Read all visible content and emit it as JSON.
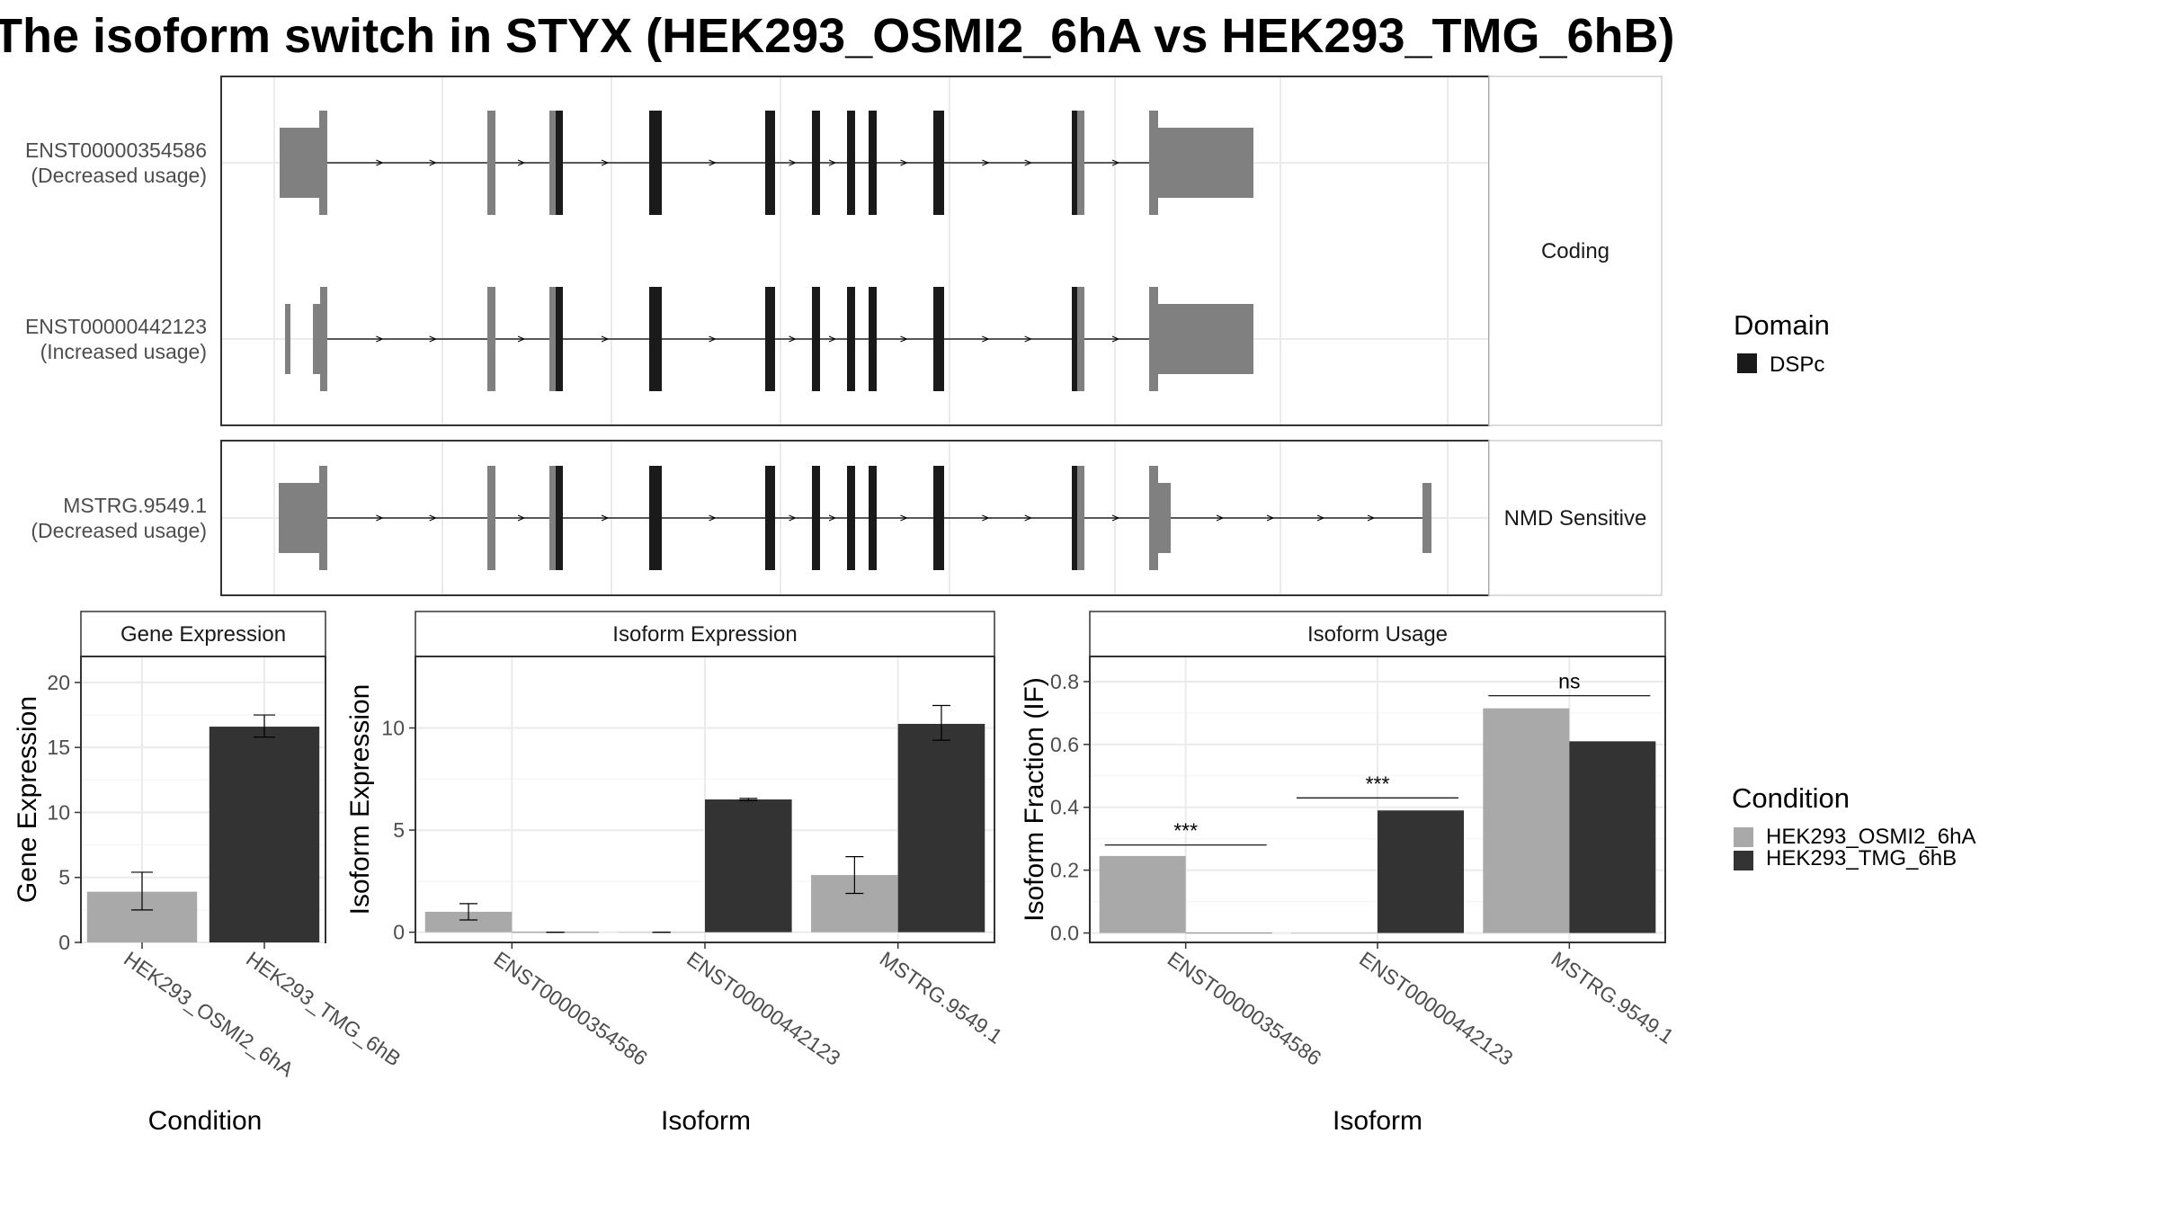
{
  "title": "The isoform switch in STYX (HEK293_OSMI2_6hA vs HEK293_TMG_6hB)",
  "legend_domain": {
    "title": "Domain",
    "items": [
      {
        "label": "DSPc",
        "color": "#1a1a1a"
      }
    ]
  },
  "legend_condition": {
    "title": "Condition",
    "items": [
      {
        "label": "HEK293_OSMI2_6hA",
        "color": "#a9a9a9"
      },
      {
        "label": "HEK293_TMG_6hB",
        "color": "#333333"
      }
    ]
  },
  "structure": {
    "panels": [
      {
        "strip": "Coding",
        "tracks": [
          {
            "label1": "ENST00000354586",
            "label2": "(Decreased usage)",
            "exons": "e1"
          },
          {
            "label1": "ENST00000442123",
            "label2": "(Increased usage)",
            "exons": "e2"
          }
        ]
      },
      {
        "strip": "NMD Sensitive",
        "tracks": [
          {
            "label1": "MSTRG.9549.1",
            "label2": "(Decreased usage)",
            "exons": "e3"
          }
        ]
      }
    ],
    "exon_color": "#808080",
    "domain_color": "#1a1a1a"
  },
  "chart_data": [
    {
      "type": "bar",
      "strip": "Gene Expression",
      "xlabel": "Condition",
      "ylabel": "Gene Expression",
      "ylim": [
        0,
        22
      ],
      "yticks": [
        0,
        5,
        10,
        15,
        20
      ],
      "categories": [
        "HEK293_OSMI2_6hA",
        "HEK293_TMG_6hB"
      ],
      "values": [
        3.9,
        16.6
      ],
      "errors": [
        [
          2.5,
          5.4
        ],
        [
          15.8,
          17.5
        ]
      ],
      "colors": [
        "#a9a9a9",
        "#333333"
      ]
    },
    {
      "type": "bar",
      "strip": "Isoform Expression",
      "xlabel": "Isoform",
      "ylabel": "Isoform Expression",
      "ylim": [
        -0.5,
        13.5
      ],
      "yticks": [
        0,
        5,
        10
      ],
      "categories": [
        "ENST00000354586",
        "ENST00000442123",
        "MSTRG.9549.1"
      ],
      "series": [
        {
          "name": "HEK293_OSMI2_6hA",
          "values": [
            1.0,
            0.0,
            2.8
          ],
          "errors": [
            [
              0.6,
              1.4
            ],
            [
              0.0,
              0.0
            ],
            [
              1.9,
              3.7
            ]
          ]
        },
        {
          "name": "HEK293_TMG_6hB",
          "values": [
            0.0,
            6.5,
            10.2
          ],
          "errors": [
            [
              0.0,
              0.0
            ],
            [
              6.45,
              6.55
            ],
            [
              9.4,
              11.1
            ]
          ]
        }
      ]
    },
    {
      "type": "bar",
      "strip": "Isoform Usage",
      "xlabel": "Isoform",
      "ylabel": "Isoform Fraction (IF)",
      "ylim": [
        -0.03,
        0.88
      ],
      "yticks": [
        0.0,
        0.2,
        0.4,
        0.6,
        0.8
      ],
      "ytick_labels": [
        "0.0",
        "0.2",
        "0.4",
        "0.6",
        "0.8"
      ],
      "categories": [
        "ENST00000354586",
        "ENST00000442123",
        "MSTRG.9549.1"
      ],
      "series": [
        {
          "name": "HEK293_OSMI2_6hA",
          "values": [
            0.245,
            0.0,
            0.715
          ]
        },
        {
          "name": "HEK293_TMG_6hB",
          "values": [
            0.0,
            0.39,
            0.61
          ]
        }
      ],
      "significance": [
        {
          "category": "ENST00000354586",
          "label": "***",
          "y": 0.28
        },
        {
          "category": "ENST00000442123",
          "label": "***",
          "y": 0.43
        },
        {
          "category": "MSTRG.9549.1",
          "label": "ns",
          "y": 0.755
        }
      ]
    }
  ]
}
